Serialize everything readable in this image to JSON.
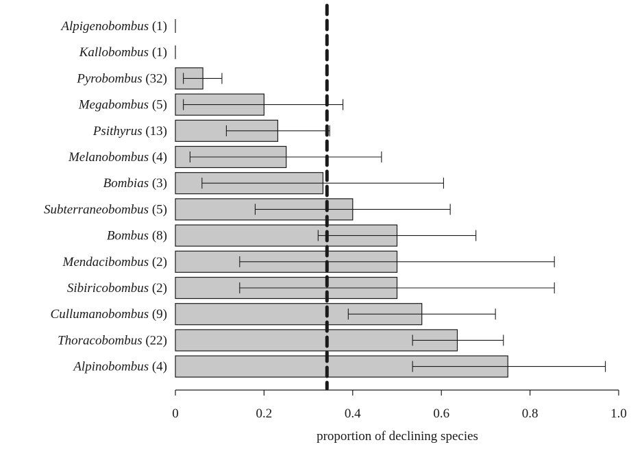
{
  "chart_data": {
    "type": "bar",
    "orientation": "horizontal",
    "categories": [
      {
        "genus": "Alpigenobombus",
        "n": "(1)"
      },
      {
        "genus": "Kallobombus",
        "n": "(1)"
      },
      {
        "genus": "Pyrobombus",
        "n": "(32)"
      },
      {
        "genus": "Megabombus",
        "n": "(5)"
      },
      {
        "genus": "Psithyrus",
        "n": "(13)"
      },
      {
        "genus": "Melanobombus",
        "n": "(4)"
      },
      {
        "genus": "Bombias",
        "n": "(3)"
      },
      {
        "genus": "Subterraneobombus",
        "n": "(5)"
      },
      {
        "genus": "Bombus",
        "n": "(8)"
      },
      {
        "genus": "Mendacibombus",
        "n": "(2)"
      },
      {
        "genus": "Sibiricobombus",
        "n": "(2)"
      },
      {
        "genus": "Cullumanobombus",
        "n": "(9)"
      },
      {
        "genus": "Thoracobombus",
        "n": "(22)"
      },
      {
        "genus": "Alpinobombus",
        "n": "(4)"
      }
    ],
    "values": [
      0,
      0,
      0.062,
      0.2,
      0.231,
      0.25,
      0.333,
      0.4,
      0.5,
      0.5,
      0.5,
      0.556,
      0.636,
      0.75
    ],
    "error_low": [
      null,
      null,
      0.018,
      0.018,
      0.115,
      0.033,
      0.06,
      0.18,
      0.322,
      0.145,
      0.145,
      0.39,
      0.535,
      0.535
    ],
    "error_high": [
      null,
      null,
      0.105,
      0.378,
      0.348,
      0.465,
      0.605,
      0.62,
      0.678,
      0.855,
      0.855,
      0.722,
      0.74,
      0.97
    ],
    "reference_line": 0.342,
    "xlabel": "proportion of declining species",
    "xlim": [
      0,
      1.0
    ],
    "xticks": [
      "0",
      "0.2",
      "0.4",
      "0.6",
      "0.8",
      "1.0"
    ],
    "bar_color": "#c8c8c8",
    "bar_edge_color": "#1a1a1a",
    "reference_line_style": "dashed",
    "grid": false,
    "legend": "none"
  }
}
